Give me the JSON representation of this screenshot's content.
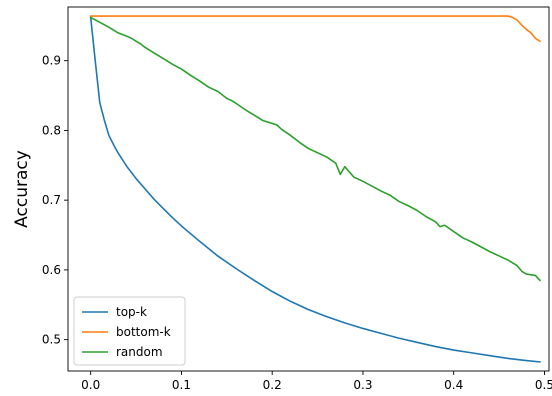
{
  "chart_data": {
    "type": "line",
    "title": "",
    "xlabel": "",
    "ylabel": "Accuracy",
    "xlim": [
      -0.025,
      0.505
    ],
    "ylim": [
      0.455,
      0.977
    ],
    "xticks": [
      0.0,
      0.1,
      0.2,
      0.3,
      0.4,
      0.5
    ],
    "xtick_labels": [
      "0.0",
      "0.1",
      "0.2",
      "0.3",
      "0.4",
      "0.5"
    ],
    "yticks": [
      0.5,
      0.6,
      0.7,
      0.8,
      0.9
    ],
    "ytick_labels": [
      "0.5",
      "0.6",
      "0.7",
      "0.8",
      "0.9"
    ],
    "grid": false,
    "legend_position": "lower-left",
    "series": [
      {
        "name": "top-k",
        "color": "#1f77b4",
        "x": [
          0.0,
          0.005,
          0.01,
          0.015,
          0.02,
          0.025,
          0.03,
          0.04,
          0.05,
          0.06,
          0.07,
          0.08,
          0.09,
          0.1,
          0.12,
          0.14,
          0.16,
          0.18,
          0.2,
          0.22,
          0.24,
          0.26,
          0.28,
          0.3,
          0.32,
          0.34,
          0.36,
          0.38,
          0.4,
          0.42,
          0.44,
          0.46,
          0.48,
          0.495
        ],
        "y": [
          0.962,
          0.9,
          0.84,
          0.815,
          0.793,
          0.78,
          0.768,
          0.748,
          0.731,
          0.716,
          0.701,
          0.688,
          0.675,
          0.663,
          0.641,
          0.62,
          0.602,
          0.585,
          0.569,
          0.555,
          0.543,
          0.533,
          0.524,
          0.516,
          0.509,
          0.502,
          0.496,
          0.49,
          0.485,
          0.481,
          0.477,
          0.473,
          0.47,
          0.468
        ]
      },
      {
        "name": "bottom-k",
        "color": "#ff7f0e",
        "x": [
          0.0,
          0.46,
          0.465,
          0.47,
          0.475,
          0.48,
          0.485,
          0.49,
          0.495
        ],
        "y": [
          0.964,
          0.964,
          0.962,
          0.958,
          0.951,
          0.945,
          0.94,
          0.932,
          0.928
        ]
      },
      {
        "name": "random",
        "color": "#2ca02c",
        "x": [
          0.0,
          0.01,
          0.02,
          0.03,
          0.04,
          0.045,
          0.05,
          0.055,
          0.06,
          0.07,
          0.08,
          0.09,
          0.1,
          0.11,
          0.12,
          0.13,
          0.14,
          0.15,
          0.155,
          0.16,
          0.17,
          0.18,
          0.19,
          0.2,
          0.205,
          0.21,
          0.22,
          0.23,
          0.24,
          0.25,
          0.26,
          0.27,
          0.275,
          0.28,
          0.29,
          0.3,
          0.31,
          0.32,
          0.33,
          0.34,
          0.35,
          0.36,
          0.37,
          0.38,
          0.385,
          0.39,
          0.4,
          0.41,
          0.42,
          0.43,
          0.44,
          0.45,
          0.46,
          0.47,
          0.475,
          0.48,
          0.49,
          0.495
        ],
        "y": [
          0.962,
          0.955,
          0.948,
          0.94,
          0.935,
          0.932,
          0.928,
          0.924,
          0.919,
          0.911,
          0.903,
          0.895,
          0.888,
          0.879,
          0.871,
          0.862,
          0.856,
          0.846,
          0.843,
          0.839,
          0.83,
          0.822,
          0.814,
          0.81,
          0.808,
          0.802,
          0.793,
          0.783,
          0.774,
          0.768,
          0.762,
          0.753,
          0.737,
          0.748,
          0.733,
          0.727,
          0.72,
          0.713,
          0.707,
          0.698,
          0.692,
          0.685,
          0.676,
          0.669,
          0.662,
          0.664,
          0.655,
          0.646,
          0.64,
          0.633,
          0.626,
          0.62,
          0.614,
          0.606,
          0.598,
          0.594,
          0.592,
          0.585
        ]
      }
    ]
  }
}
